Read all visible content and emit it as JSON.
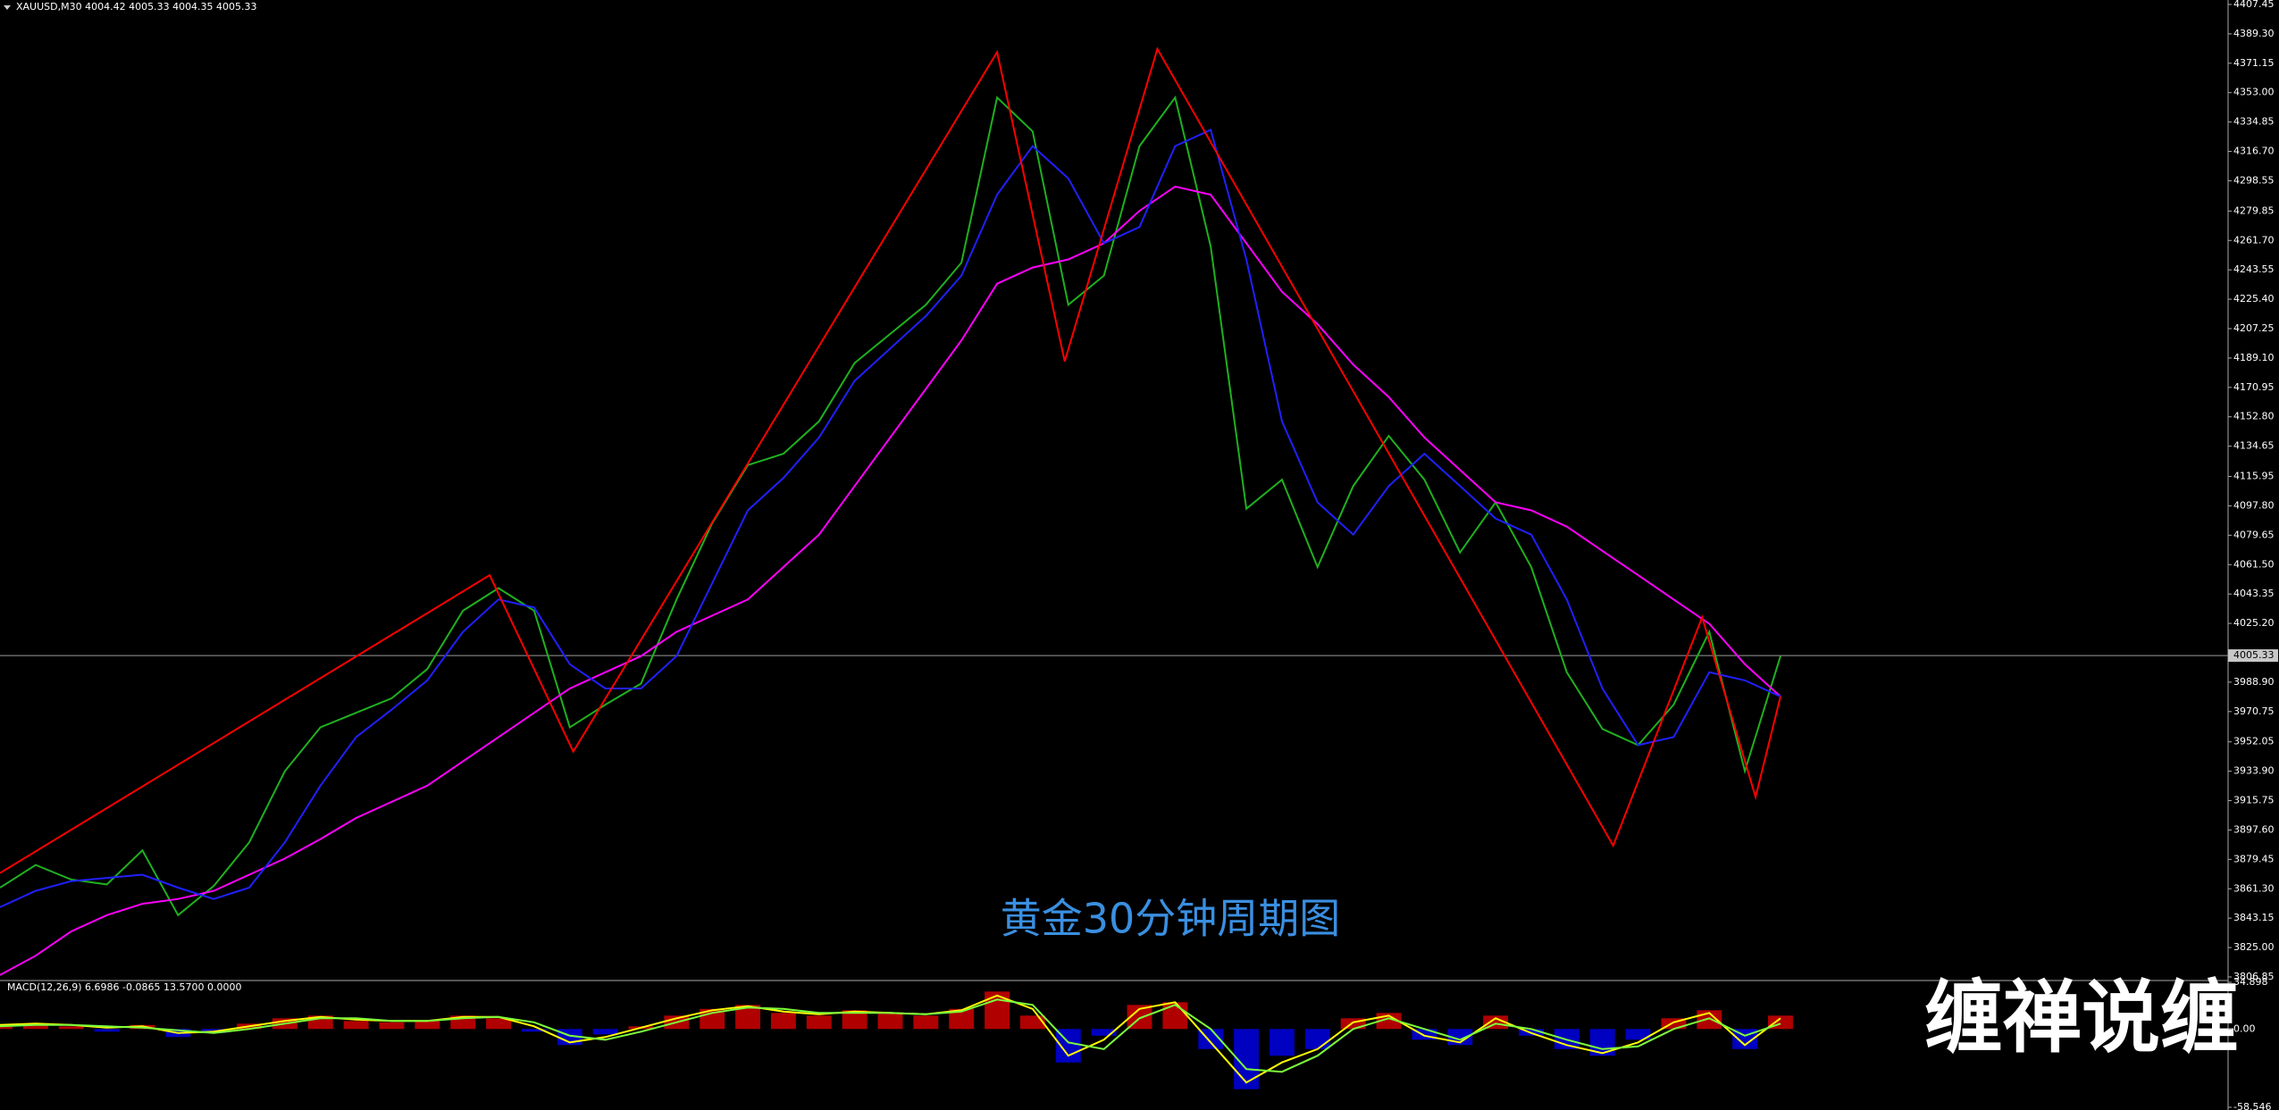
{
  "chart_data": [
    {
      "type": "line",
      "title": "XAUUSD,M30  4004.42 4005.33 4004.35 4005.33",
      "annotation": "黄金30分钟周期图",
      "last_price": 4005.33,
      "xlim": [
        0,
        50
      ],
      "x": [
        0,
        1,
        2,
        3,
        4,
        5,
        6,
        7,
        8,
        9,
        10,
        11,
        12,
        13,
        14,
        15,
        16,
        17,
        18,
        19,
        20,
        21,
        22,
        23,
        24,
        25,
        26,
        27,
        28,
        29,
        30,
        31,
        32,
        33,
        34,
        35,
        36,
        37,
        38,
        39,
        40,
        41,
        42,
        43,
        44,
        45,
        46,
        47,
        48,
        49,
        50
      ],
      "ylim": [
        3806.85,
        4407.45
      ],
      "yticks": [
        4407.45,
        {
          "value": 4389.3,
          "label": "4389.30"
        },
        4371.15,
        {
          "value": 4353,
          "label": "4353.00"
        },
        4334.85,
        {
          "value": 4316.7,
          "label": "4316.70"
        },
        4298.55,
        4279.85,
        {
          "value": 4261.7,
          "label": "4261.70"
        },
        4243.55,
        {
          "value": 4225.4,
          "label": "4225.40"
        },
        4207.25,
        {
          "value": 4189.1,
          "label": "4189.10"
        },
        4170.95,
        {
          "value": 4152.8,
          "label": "4152.80"
        },
        4134.65,
        4115.95,
        {
          "value": 4097.8,
          "label": "4097.80"
        },
        4079.65,
        {
          "value": 4061.5,
          "label": "4061.50"
        },
        4043.35,
        {
          "value": 4025.2,
          "label": "4025.20"
        },
        {
          "value": 3988.9,
          "label": "3988.90"
        },
        3970.75,
        3952.05,
        {
          "value": 3933.9,
          "label": "3933.90"
        },
        3915.75,
        {
          "value": 3897.6,
          "label": "3897.60"
        },
        3879.45,
        {
          "value": 3861.3,
          "label": "3861.30"
        },
        3843.15,
        {
          "value": 3825,
          "label": "3825.00"
        },
        3806.85
      ],
      "series": [
        {
          "color": "#1fb01f",
          "values": [
            3862,
            3876,
            3867,
            3864,
            3885,
            3845,
            3863,
            3890,
            3934,
            3961,
            3970,
            3979,
            3997,
            4033,
            4047,
            4033,
            3961,
            3975,
            3988,
            4040,
            4087,
            4123,
            4130,
            4150,
            4186,
            4204,
            4222,
            4248,
            4350,
            4329,
            4222,
            4240,
            4320,
            4350,
            4258,
            4096,
            4114,
            4060,
            4110,
            4141,
            4114,
            4069,
            4100,
            4060,
            3995,
            3960,
            3950,
            3975,
            4020,
            3934,
            4005
          ]
        },
        {
          "color": "#ff00ff",
          "values": [
            3808,
            3820,
            3835,
            3845,
            3852,
            3855,
            3860,
            3870,
            3880,
            3892,
            3905,
            3915,
            3925,
            3940,
            3955,
            3970,
            3985,
            3995,
            4005,
            4020,
            4030,
            4040,
            4060,
            4080,
            4110,
            4140,
            4170,
            4200,
            4235,
            4245,
            4250,
            4260,
            4280,
            4295,
            4290,
            4260,
            4230,
            4210,
            4185,
            4165,
            4140,
            4120,
            4100,
            4095,
            4085,
            4070,
            4055,
            4040,
            4025,
            4000,
            3980
          ]
        },
        {
          "color": "#2020ff",
          "values": [
            3850,
            3860,
            3866,
            3868,
            3870,
            3862,
            3855,
            3862,
            3890,
            3925,
            3955,
            3972,
            3990,
            4020,
            4040,
            4035,
            4000,
            3985,
            3985,
            4005,
            4050,
            4095,
            4115,
            4140,
            4175,
            4195,
            4215,
            4240,
            4290,
            4320,
            4300,
            4260,
            4270,
            4320,
            4330,
            4250,
            4150,
            4100,
            4080,
            4110,
            4130,
            4110,
            4090,
            4080,
            4040,
            3985,
            3950,
            3955,
            3995,
            3990,
            3980
          ]
        },
        {
          "color": "#ff0000",
          "x": [
            0,
            13.75,
            16.1,
            28,
            29.9,
            32.5,
            45.3,
            47.8,
            49.3,
            50
          ],
          "values": [
            3871,
            4055,
            3946,
            4378,
            4187,
            4380,
            3888,
            4029,
            3918,
            3980
          ]
        }
      ]
    },
    {
      "type": "macd",
      "title": "MACD(12,26,9) 6.6986 -0.0865 13.5700 0.0000",
      "ylim": [
        -58.546,
        34.898
      ],
      "yticks": [
        34.898,
        {
          "value": 0,
          "label": "0.00"
        },
        -58.546
      ],
      "histogram": {
        "positive_color": "#b00000",
        "negative_color": "#0000c0",
        "values": [
          2,
          3,
          2,
          -2,
          3,
          -6,
          -3,
          4,
          8,
          10,
          6,
          5,
          6,
          10,
          8,
          -2,
          -12,
          -4,
          2,
          10,
          15,
          18,
          12,
          10,
          14,
          12,
          10,
          15,
          28,
          10,
          -25,
          -5,
          18,
          20,
          -15,
          -45,
          -20,
          -15,
          8,
          12,
          -8,
          -12,
          10,
          -5,
          -15,
          -20,
          -8,
          8,
          14,
          -15,
          10
        ]
      },
      "series": [
        {
          "color": "#ffff00",
          "values": [
            3,
            4,
            3,
            1,
            2,
            -3,
            -2,
            2,
            6,
            9,
            7,
            6,
            6,
            9,
            9,
            2,
            -10,
            -6,
            1,
            8,
            14,
            17,
            13,
            11,
            13,
            12,
            11,
            14,
            25,
            15,
            -20,
            -8,
            15,
            20,
            -10,
            -40,
            -25,
            -15,
            5,
            10,
            -5,
            -10,
            8,
            -3,
            -12,
            -18,
            -10,
            5,
            12,
            -12,
            8
          ]
        },
        {
          "color": "#7cff3c",
          "values": [
            2,
            3,
            3,
            2,
            1,
            -1,
            -3,
            0,
            4,
            8,
            8,
            6,
            6,
            8,
            9,
            5,
            -5,
            -8,
            -2,
            5,
            12,
            16,
            15,
            12,
            12,
            12,
            11,
            13,
            22,
            18,
            -10,
            -15,
            8,
            18,
            0,
            -30,
            -32,
            -20,
            0,
            8,
            0,
            -8,
            4,
            0,
            -8,
            -15,
            -13,
            0,
            8,
            -5,
            4
          ]
        }
      ]
    }
  ],
  "watermark": "缠禅说缠"
}
